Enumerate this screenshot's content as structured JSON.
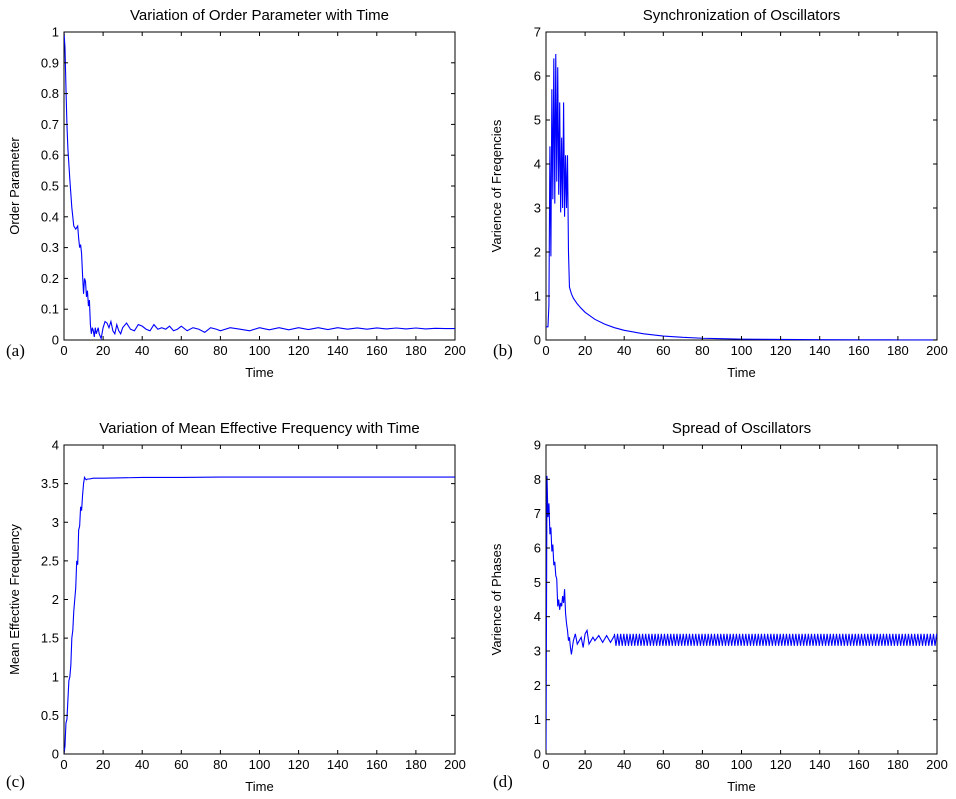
{
  "colors": {
    "series": "#0000ff",
    "axes": "#000000",
    "background": "#ffffff"
  },
  "chart_data": [
    {
      "type": "line",
      "panel_label": "(a)",
      "title": "Variation of Order Parameter with Time",
      "xlabel": "Time",
      "ylabel": "Order Parameter",
      "xlim": [
        0,
        200
      ],
      "ylim": [
        0,
        1
      ],
      "xticks": [
        0,
        20,
        40,
        60,
        80,
        100,
        120,
        140,
        160,
        180,
        200
      ],
      "yticks": [
        0,
        0.1,
        0.2,
        0.3,
        0.4,
        0.5,
        0.6,
        0.7,
        0.8,
        0.9,
        1
      ],
      "grid": false,
      "series": [
        {
          "x": [
            0,
            0.5,
            1,
            1.5,
            2,
            3,
            4,
            5,
            6,
            7,
            7.5,
            8,
            8.5,
            9,
            9.5,
            10,
            10.5,
            11,
            11.5,
            12,
            12.5,
            13,
            13.5,
            14,
            14.5,
            15,
            15.5,
            16,
            16.5,
            17,
            17.5,
            18,
            19,
            20,
            21,
            22,
            23,
            24,
            25,
            26,
            27,
            28,
            29,
            30,
            32,
            34,
            36,
            38,
            40,
            42,
            44,
            46,
            48,
            50,
            52,
            54,
            56,
            58,
            60,
            63,
            66,
            69,
            72,
            75,
            78,
            80,
            85,
            90,
            95,
            100,
            105,
            110,
            115,
            120,
            125,
            130,
            135,
            140,
            145,
            150,
            155,
            160,
            165,
            170,
            175,
            180,
            185,
            190,
            195,
            200
          ],
          "y": [
            1.0,
            0.95,
            0.82,
            0.7,
            0.62,
            0.52,
            0.43,
            0.37,
            0.36,
            0.37,
            0.33,
            0.3,
            0.31,
            0.28,
            0.21,
            0.15,
            0.2,
            0.19,
            0.14,
            0.16,
            0.11,
            0.13,
            0.05,
            0.02,
            0.04,
            0.03,
            0.01,
            0.04,
            0.02,
            0.03,
            0.04,
            0.02,
            0.005,
            0.04,
            0.06,
            0.055,
            0.04,
            0.06,
            0.03,
            0.02,
            0.05,
            0.03,
            0.02,
            0.04,
            0.055,
            0.035,
            0.03,
            0.05,
            0.045,
            0.035,
            0.03,
            0.05,
            0.035,
            0.04,
            0.035,
            0.045,
            0.03,
            0.035,
            0.045,
            0.03,
            0.04,
            0.035,
            0.025,
            0.04,
            0.035,
            0.03,
            0.04,
            0.035,
            0.03,
            0.04,
            0.033,
            0.04,
            0.033,
            0.04,
            0.034,
            0.04,
            0.034,
            0.04,
            0.035,
            0.039,
            0.035,
            0.039,
            0.036,
            0.039,
            0.036,
            0.039,
            0.036,
            0.038,
            0.037,
            0.037
          ]
        }
      ]
    },
    {
      "type": "line",
      "panel_label": "(b)",
      "title": "Synchronization of Oscillators",
      "xlabel": "Time",
      "ylabel": "Varience of Freqencies",
      "xlim": [
        0,
        200
      ],
      "ylim": [
        0,
        7
      ],
      "xticks": [
        0,
        20,
        40,
        60,
        80,
        100,
        120,
        140,
        160,
        180,
        200
      ],
      "yticks": [
        0,
        1,
        2,
        3,
        4,
        5,
        6,
        7
      ],
      "grid": false,
      "series": [
        {
          "x": [
            0,
            0.5,
            1,
            1.5,
            2,
            2.5,
            3,
            3.5,
            4,
            4.5,
            5,
            5.5,
            6,
            6.5,
            7,
            7.5,
            8,
            8.5,
            9,
            9.5,
            10,
            10.5,
            11,
            11.5,
            12,
            13,
            14,
            16,
            18,
            20,
            25,
            30,
            35,
            40,
            50,
            60,
            70,
            80,
            90,
            100,
            120,
            140,
            160,
            180,
            200
          ],
          "y": [
            0.3,
            0.3,
            0.3,
            0.8,
            4.4,
            1.9,
            5.7,
            3.2,
            6.4,
            3.1,
            6.5,
            3.6,
            6.2,
            3.3,
            5.4,
            2.9,
            4.6,
            3.0,
            5.4,
            2.8,
            4.2,
            3.0,
            4.2,
            2.0,
            1.2,
            1.05,
            0.95,
            0.82,
            0.72,
            0.63,
            0.47,
            0.36,
            0.28,
            0.22,
            0.14,
            0.09,
            0.06,
            0.04,
            0.03,
            0.02,
            0.012,
            0.008,
            0.005,
            0.003,
            0.002
          ]
        }
      ]
    },
    {
      "type": "line",
      "panel_label": "(c)",
      "title": "Variation of Mean Effective Frequency with Time",
      "xlabel": "Time",
      "ylabel": "Mean Effective Frequency",
      "xlim": [
        0,
        200
      ],
      "ylim": [
        0,
        4
      ],
      "xticks": [
        0,
        20,
        40,
        60,
        80,
        100,
        120,
        140,
        160,
        180,
        200
      ],
      "yticks": [
        0,
        0.5,
        1,
        1.5,
        2,
        2.5,
        3,
        3.5,
        4
      ],
      "grid": false,
      "series": [
        {
          "x": [
            0,
            0.5,
            1,
            1.5,
            2,
            2.5,
            3,
            3.5,
            4,
            4.5,
            5,
            5.5,
            6,
            6.5,
            7,
            7.5,
            8,
            8.5,
            9,
            9.5,
            10,
            10.5,
            11,
            11.5,
            12,
            13,
            15,
            20,
            30,
            40,
            60,
            80,
            100,
            120,
            140,
            160,
            180,
            200
          ],
          "y": [
            0.0,
            0.1,
            0.4,
            0.45,
            0.7,
            0.95,
            1.0,
            1.15,
            1.5,
            1.6,
            1.85,
            2.0,
            2.15,
            2.5,
            2.45,
            2.9,
            2.95,
            3.2,
            3.15,
            3.35,
            3.5,
            3.58,
            3.56,
            3.55,
            3.56,
            3.56,
            3.57,
            3.57,
            3.575,
            3.58,
            3.58,
            3.585,
            3.585,
            3.585,
            3.585,
            3.585,
            3.585,
            3.585
          ]
        }
      ]
    },
    {
      "type": "line",
      "panel_label": "(d)",
      "title": "Spread of Oscillators",
      "xlabel": "Time",
      "ylabel": "Varience of Phases",
      "xlim": [
        0,
        200
      ],
      "ylim": [
        0,
        9
      ],
      "xticks": [
        0,
        20,
        40,
        60,
        80,
        100,
        120,
        140,
        160,
        180,
        200
      ],
      "yticks": [
        0,
        1,
        2,
        3,
        4,
        5,
        6,
        7,
        8,
        9
      ],
      "grid": false,
      "series": [
        {
          "x": [
            0,
            0.5,
            1,
            1.5,
            2,
            2.5,
            3,
            3.5,
            4,
            4.5,
            5,
            5.5,
            6,
            6.5,
            7,
            7.5,
            8,
            8.5,
            9,
            9.5,
            10,
            10.5,
            11,
            11.5,
            12,
            12.5,
            13,
            13.5,
            14,
            15,
            16,
            17,
            18,
            19,
            20,
            21,
            22,
            23,
            24,
            25,
            27,
            29,
            31,
            33,
            35
          ],
          "y": [
            0.0,
            8.1,
            6.9,
            7.3,
            6.4,
            6.6,
            5.9,
            6.1,
            5.5,
            5.6,
            5.2,
            5.1,
            4.3,
            4.5,
            4.2,
            4.4,
            4.3,
            4.6,
            4.4,
            4.8,
            4.1,
            3.8,
            3.6,
            3.3,
            3.4,
            3.1,
            2.9,
            3.1,
            3.3,
            3.5,
            3.2,
            3.3,
            3.4,
            3.1,
            3.5,
            3.6,
            3.2,
            3.3,
            3.4,
            3.3,
            3.45,
            3.25,
            3.45,
            3.25,
            3.45
          ]
        }
      ],
      "steady_oscillation": {
        "from_x": 35,
        "to_x": 200,
        "low": 3.15,
        "high": 3.5,
        "period": 1.6
      }
    }
  ]
}
